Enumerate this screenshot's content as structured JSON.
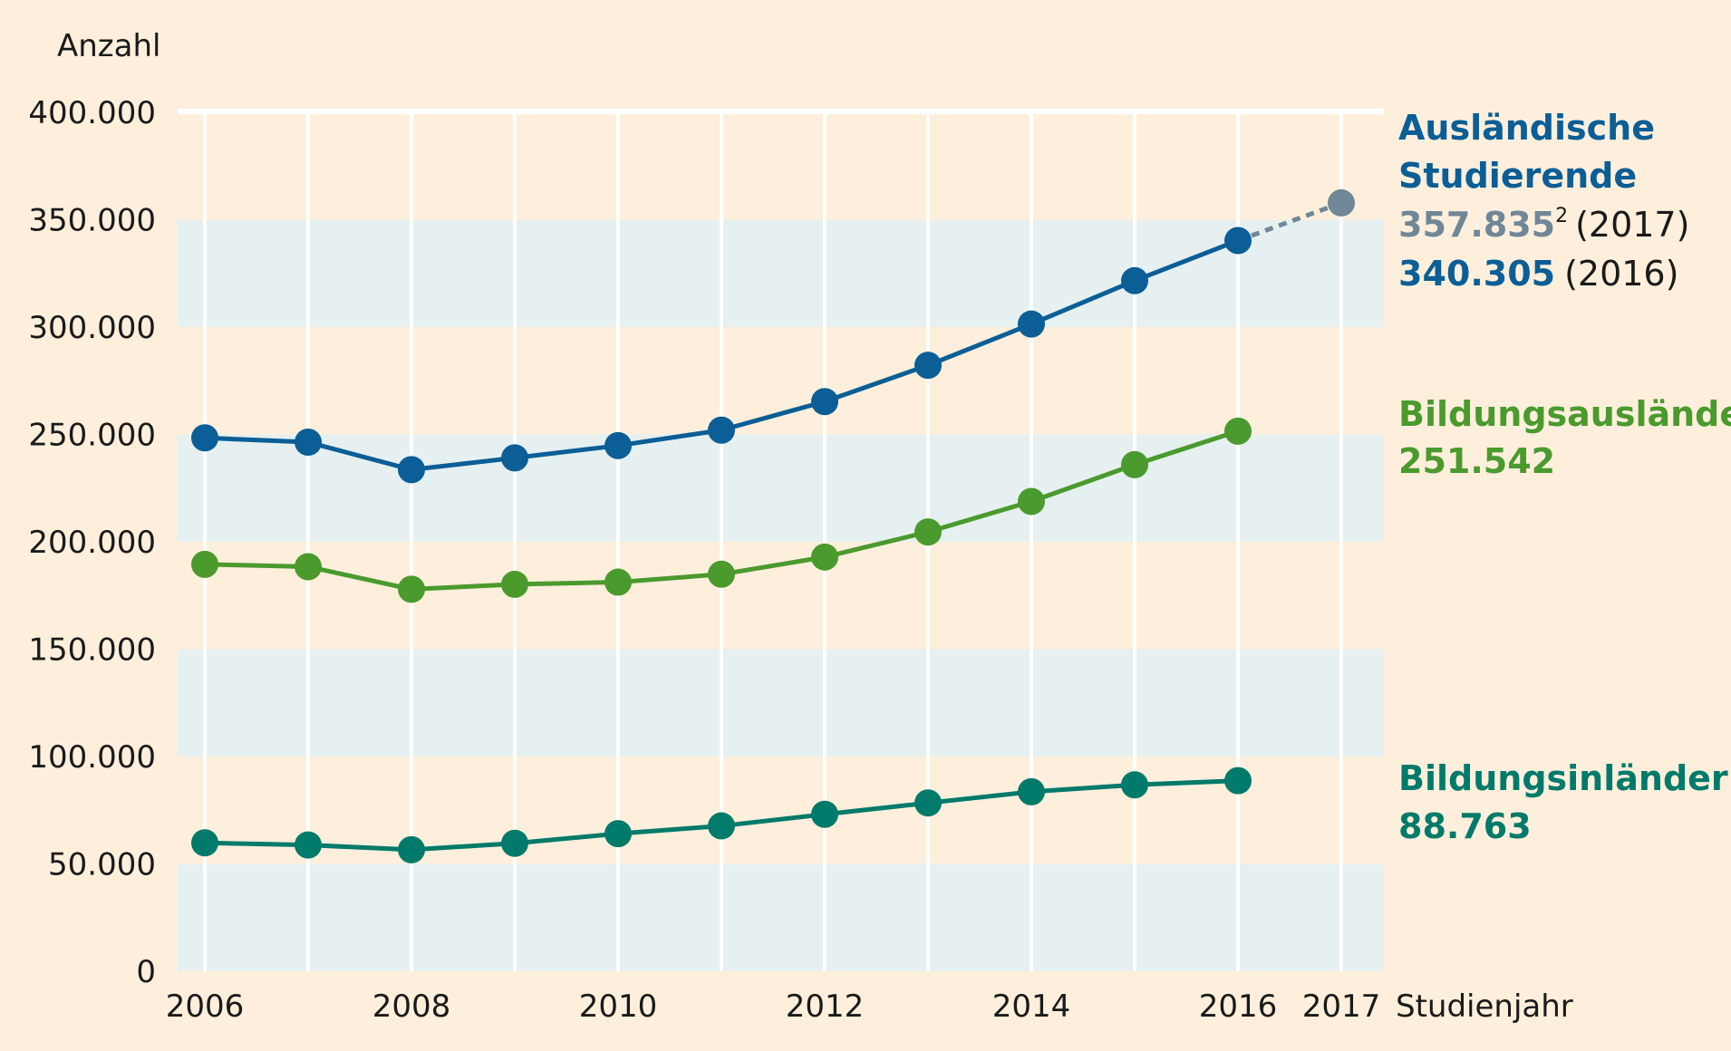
{
  "chart_data": {
    "type": "line",
    "ylabel": "Anzahl",
    "xlabel": "Studienjahr",
    "ylim": [
      0,
      400000
    ],
    "yticks": [
      0,
      50000,
      100000,
      150000,
      200000,
      250000,
      300000,
      350000,
      400000
    ],
    "ytick_labels": [
      "0",
      "50.000",
      "100.000",
      "150.000",
      "200.000",
      "250.000",
      "300.000",
      "350.000",
      "400.000"
    ],
    "x": [
      2006,
      2007,
      2008,
      2009,
      2010,
      2011,
      2012,
      2013,
      2014,
      2015,
      2016,
      2017
    ],
    "xtick_labels": [
      "2006",
      "2008",
      "2010",
      "2012",
      "2014",
      "2016",
      "2017"
    ],
    "xtick_years": [
      2006,
      2008,
      2010,
      2012,
      2014,
      2016,
      2017
    ],
    "series": [
      {
        "name": "Ausländische Studierende",
        "color": "#0b5e96",
        "values": [
          248400,
          246400,
          233600,
          239100,
          244800,
          252000,
          265300,
          282200,
          301400,
          321600,
          340305,
          null
        ],
        "projection": {
          "x": 2017,
          "value": 357835,
          "color": "#6f8797"
        }
      },
      {
        "name": "Bildungsausländer",
        "color": "#4a9a2e",
        "values": [
          189500,
          188400,
          177900,
          180200,
          181200,
          184900,
          192900,
          204600,
          218800,
          235900,
          251542,
          null
        ]
      },
      {
        "name": "Bildungsinländer",
        "color": "#007a6a",
        "values": [
          59800,
          58800,
          56600,
          59600,
          64100,
          67700,
          73100,
          78400,
          83600,
          86800,
          88763,
          null
        ]
      }
    ]
  },
  "labels": {
    "auslaender": {
      "title_line1": "Ausländische",
      "title_line2": "Studierende",
      "value_2017": "357.835",
      "footnote": "2",
      "year_2017": "(2017)",
      "value_2016": "340.305",
      "year_2016": "(2016)"
    },
    "bildungsauslaender": {
      "title": "Bildungsausländer",
      "value": "251.542"
    },
    "bildungsinlaender": {
      "title": "Bildungsinländer",
      "value": "88.763"
    }
  },
  "colors": {
    "background": "#fdefdc",
    "band": "#e6f0f0",
    "gridline": "#ffffff",
    "text": "#1a1a1a"
  }
}
